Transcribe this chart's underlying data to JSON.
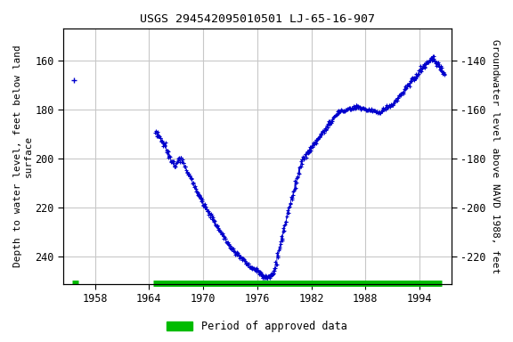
{
  "title": "USGS 294542095010501 LJ-65-16-907",
  "ylabel_left": "Depth to water level, feet below land\nsurface",
  "ylabel_right": "Groundwater level above NAVD 1988, feet",
  "ylim_left": [
    251,
    147
  ],
  "ylim_right": [
    -231,
    -127
  ],
  "xlim": [
    1954.5,
    1997.5
  ],
  "xticks": [
    1958,
    1964,
    1970,
    1976,
    1982,
    1988,
    1994
  ],
  "yticks_left": [
    160,
    180,
    200,
    220,
    240
  ],
  "yticks_right": [
    -140,
    -160,
    -180,
    -200,
    -220
  ],
  "bg_color": "#ffffff",
  "grid_color": "#c8c8c8",
  "data_color": "#0000cc",
  "approved_color": "#00bb00",
  "legend_label": "Period of approved data",
  "font_family": "monospace",
  "title_fontsize": 9.5,
  "tick_fontsize": 8.5,
  "label_fontsize": 8
}
